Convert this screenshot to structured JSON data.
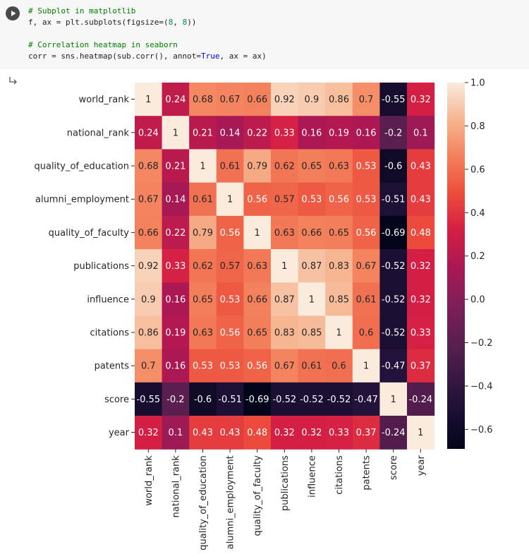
{
  "code_cell": {
    "line1": "# Subplot in matplotlib",
    "line2_prefix": "f, ax = plt.subplots(figsize=(",
    "line2_num1": "8",
    "line2_sep": ", ",
    "line2_num2": "8",
    "line2_suffix": "))",
    "line3": "# Correlation heatmap in seaborn",
    "line4_prefix": "corr = sns.heatmap(sub.corr(), annot=",
    "line4_kw": "True",
    "line4_suffix": ", ax = ax)"
  },
  "icons": {
    "run": "play-icon",
    "output": "output-arrow-icon"
  },
  "chart_data": {
    "type": "heatmap",
    "x_labels": [
      "world_rank",
      "national_rank",
      "quality_of_education",
      "alumni_employment",
      "quality_of_faculty",
      "publications",
      "influence",
      "citations",
      "patents",
      "score",
      "year"
    ],
    "y_labels": [
      "world_rank",
      "national_rank",
      "quality_of_education",
      "alumni_employment",
      "quality_of_faculty",
      "publications",
      "influence",
      "citations",
      "patents",
      "score",
      "year"
    ],
    "values": [
      [
        1,
        0.24,
        0.68,
        0.67,
        0.66,
        0.92,
        0.9,
        0.86,
        0.7,
        -0.55,
        0.32
      ],
      [
        0.24,
        1,
        0.21,
        0.14,
        0.22,
        0.33,
        0.16,
        0.19,
        0.16,
        -0.2,
        0.1
      ],
      [
        0.68,
        0.21,
        1,
        0.61,
        0.79,
        0.62,
        0.65,
        0.63,
        0.53,
        -0.6,
        0.43
      ],
      [
        0.67,
        0.14,
        0.61,
        1,
        0.56,
        0.57,
        0.53,
        0.56,
        0.53,
        -0.51,
        0.43
      ],
      [
        0.66,
        0.22,
        0.79,
        0.56,
        1,
        0.63,
        0.66,
        0.65,
        0.56,
        -0.69,
        0.48
      ],
      [
        0.92,
        0.33,
        0.62,
        0.57,
        0.63,
        1,
        0.87,
        0.83,
        0.67,
        -0.52,
        0.32
      ],
      [
        0.9,
        0.16,
        0.65,
        0.53,
        0.66,
        0.87,
        1,
        0.85,
        0.61,
        -0.52,
        0.32
      ],
      [
        0.86,
        0.19,
        0.63,
        0.56,
        0.65,
        0.83,
        0.85,
        1,
        0.6,
        -0.52,
        0.33
      ],
      [
        0.7,
        0.16,
        0.53,
        0.53,
        0.56,
        0.67,
        0.61,
        0.6,
        1,
        -0.47,
        0.37
      ],
      [
        -0.55,
        -0.2,
        -0.6,
        -0.51,
        -0.69,
        -0.52,
        -0.52,
        -0.52,
        -0.47,
        1,
        -0.24
      ],
      [
        0.32,
        0.1,
        0.43,
        0.43,
        0.48,
        0.32,
        0.32,
        0.33,
        0.37,
        -0.24,
        1
      ]
    ],
    "annotations": [
      [
        "1",
        "0.24",
        "0.68",
        "0.67",
        "0.66",
        "0.92",
        "0.9",
        "0.86",
        "0.7",
        "-0.55",
        "0.32"
      ],
      [
        "0.24",
        "1",
        "0.21",
        "0.14",
        "0.22",
        "0.33",
        "0.16",
        "0.19",
        "0.16",
        "-0.2",
        "0.1"
      ],
      [
        "0.68",
        "0.21",
        "1",
        "0.61",
        "0.79",
        "0.62",
        "0.65",
        "0.63",
        "0.53",
        "-0.6",
        "0.43"
      ],
      [
        "0.67",
        "0.14",
        "0.61",
        "1",
        "0.56",
        "0.57",
        "0.53",
        "0.56",
        "0.53",
        "-0.51",
        "0.43"
      ],
      [
        "0.66",
        "0.22",
        "0.79",
        "0.56",
        "1",
        "0.63",
        "0.66",
        "0.65",
        "0.56",
        "-0.69",
        "0.48"
      ],
      [
        "0.92",
        "0.33",
        "0.62",
        "0.57",
        "0.63",
        "1",
        "0.87",
        "0.83",
        "0.67",
        "-0.52",
        "0.32"
      ],
      [
        "0.9",
        "0.16",
        "0.65",
        "0.53",
        "0.66",
        "0.87",
        "1",
        "0.85",
        "0.61",
        "-0.52",
        "0.32"
      ],
      [
        "0.86",
        "0.19",
        "0.63",
        "0.56",
        "0.65",
        "0.83",
        "0.85",
        "1",
        "0.6",
        "-0.52",
        "0.33"
      ],
      [
        "0.7",
        "0.16",
        "0.53",
        "0.53",
        "0.56",
        "0.67",
        "0.61",
        "0.6",
        "1",
        "-0.47",
        "0.37"
      ],
      [
        "-0.55",
        "-0.2",
        "-0.6",
        "-0.51",
        "-0.69",
        "-0.52",
        "-0.52",
        "-0.52",
        "-0.47",
        "1",
        "-0.24"
      ],
      [
        "0.32",
        "0.1",
        "0.43",
        "0.43",
        "0.48",
        "0.32",
        "0.32",
        "0.33",
        "0.37",
        "-0.24",
        "1"
      ]
    ],
    "colormap": "rocket",
    "colorbar": {
      "vmin": -0.69,
      "vmax": 1.0,
      "ticks": [
        1.0,
        0.8,
        0.6,
        0.4,
        0.2,
        0.0,
        -0.2,
        -0.4,
        -0.6
      ],
      "tick_labels": [
        "1.0",
        "0.8",
        "0.6",
        "0.4",
        "0.2",
        "0.0",
        "−0.2",
        "−0.4",
        "−0.6"
      ]
    }
  }
}
